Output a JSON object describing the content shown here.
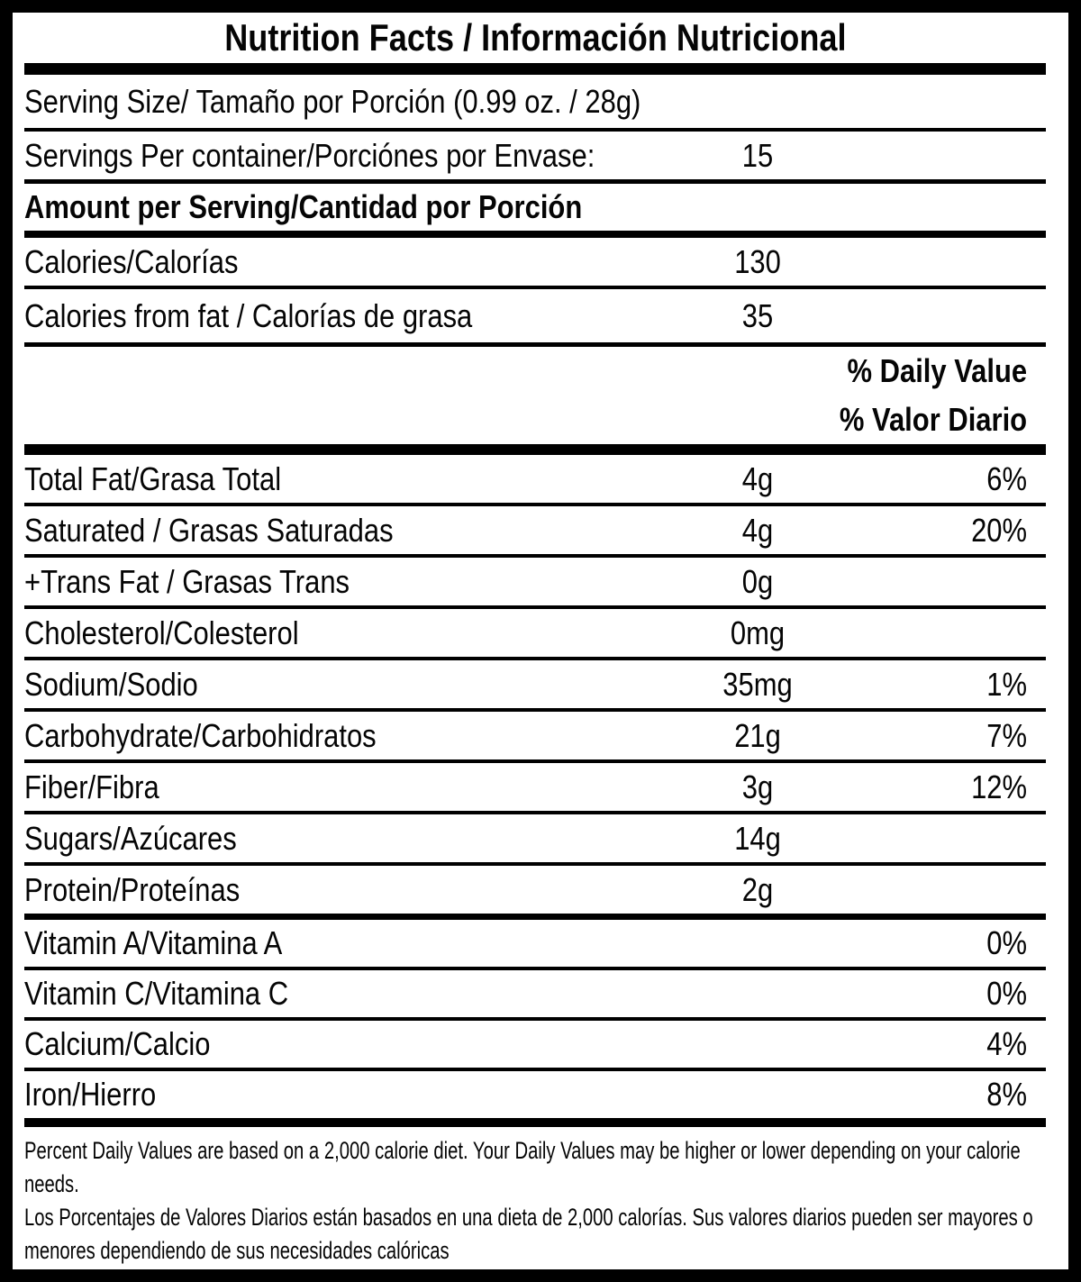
{
  "label": {
    "title": "Nutrition Facts / Información Nutricional",
    "serving_size": {
      "label": "Serving Size/ Tamaño por Porción (0.99 oz. / 28g)"
    },
    "servings_per_container": {
      "label": "Servings Per container/Porciónes por Envase:",
      "value": "15"
    },
    "amount_per_serving": {
      "label": "Amount per Serving/Cantidad por Porción"
    },
    "calories": {
      "label": "Calories/Calorías",
      "value": "130"
    },
    "calories_from_fat": {
      "label": "Calories from fat / Calorías de grasa",
      "value": "35"
    },
    "daily_value_header": {
      "line1": "% Daily Value",
      "line2": "% Valor Diario"
    },
    "nutrients": [
      {
        "label": "Total Fat/Grasa Total",
        "value": "4g",
        "pct": "6%"
      },
      {
        "label": "Saturated / Grasas Saturadas",
        "value": "4g",
        "pct": "20%"
      },
      {
        "label": "+Trans Fat / Grasas Trans",
        "value": "0g",
        "pct": ""
      },
      {
        "label": "Cholesterol/Colesterol",
        "value": "0mg",
        "pct": ""
      },
      {
        "label": "Sodium/Sodio",
        "value": "35mg",
        "pct": "1%"
      },
      {
        "label": "Carbohydrate/Carbohidratos",
        "value": "21g",
        "pct": "7%"
      },
      {
        "label": "Fiber/Fibra",
        "value": "3g",
        "pct": "12%"
      },
      {
        "label": "Sugars/Azúcares",
        "value": "14g",
        "pct": ""
      },
      {
        "label": "Protein/Proteínas",
        "value": "2g",
        "pct": ""
      },
      {
        "label": "Vitamin A/Vitamina A",
        "value": "",
        "pct": "0%"
      },
      {
        "label": "Vitamin C/Vitamina C",
        "value": "",
        "pct": "0%"
      },
      {
        "label": "Calcium/Calcio",
        "value": "",
        "pct": "4%"
      },
      {
        "label": "Iron/Hierro",
        "value": "",
        "pct": "8%"
      }
    ],
    "footnote_en": "Percent Daily Values are based on a 2,000 calorie diet. Your Daily Values may be higher or lower depending on your calorie needs.",
    "footnote_es": "Los Porcentajes de Valores Diarios están basados en una dieta de 2,000 calorías. Sus valores diarios pueden ser mayores o menores dependiendo de sus necesidades calóricas",
    "colors": {
      "ink": "#050505",
      "paper": "#ffffff"
    }
  }
}
